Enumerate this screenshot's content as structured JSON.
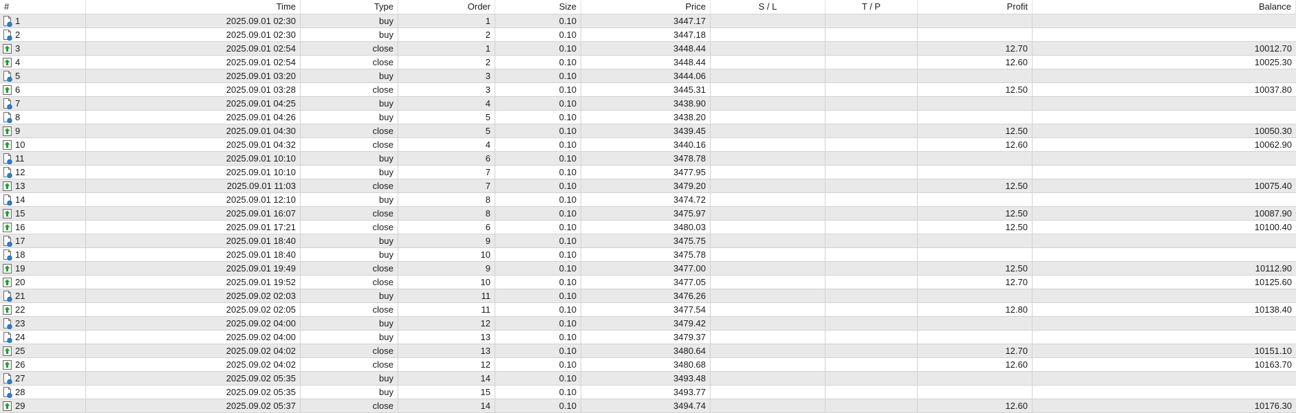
{
  "columns": [
    "#",
    "Time",
    "Type",
    "Order",
    "Size",
    "Price",
    "S / L",
    "T / P",
    "Profit",
    "Balance"
  ],
  "icons": {
    "buy": "pending-document-icon",
    "close": "green-up-arrow-icon"
  },
  "colors": {
    "row_alt": "#e9e9e9",
    "grid_line": "#d2d2d2",
    "arrow_green": "#1e9e2e",
    "dot_blue": "#2a7fd4"
  },
  "rows": [
    {
      "n": "1",
      "time": "2025.09.01 02:30",
      "type": "buy",
      "order": "1",
      "size": "0.10",
      "price": "3447.17",
      "sl": "",
      "tp": "",
      "profit": "",
      "balance": ""
    },
    {
      "n": "2",
      "time": "2025.09.01 02:30",
      "type": "buy",
      "order": "2",
      "size": "0.10",
      "price": "3447.18",
      "sl": "",
      "tp": "",
      "profit": "",
      "balance": ""
    },
    {
      "n": "3",
      "time": "2025.09.01 02:54",
      "type": "close",
      "order": "1",
      "size": "0.10",
      "price": "3448.44",
      "sl": "",
      "tp": "",
      "profit": "12.70",
      "balance": "10012.70"
    },
    {
      "n": "4",
      "time": "2025.09.01 02:54",
      "type": "close",
      "order": "2",
      "size": "0.10",
      "price": "3448.44",
      "sl": "",
      "tp": "",
      "profit": "12.60",
      "balance": "10025.30"
    },
    {
      "n": "5",
      "time": "2025.09.01 03:20",
      "type": "buy",
      "order": "3",
      "size": "0.10",
      "price": "3444.06",
      "sl": "",
      "tp": "",
      "profit": "",
      "balance": ""
    },
    {
      "n": "6",
      "time": "2025.09.01 03:28",
      "type": "close",
      "order": "3",
      "size": "0.10",
      "price": "3445.31",
      "sl": "",
      "tp": "",
      "profit": "12.50",
      "balance": "10037.80"
    },
    {
      "n": "7",
      "time": "2025.09.01 04:25",
      "type": "buy",
      "order": "4",
      "size": "0.10",
      "price": "3438.90",
      "sl": "",
      "tp": "",
      "profit": "",
      "balance": ""
    },
    {
      "n": "8",
      "time": "2025.09.01 04:26",
      "type": "buy",
      "order": "5",
      "size": "0.10",
      "price": "3438.20",
      "sl": "",
      "tp": "",
      "profit": "",
      "balance": ""
    },
    {
      "n": "9",
      "time": "2025.09.01 04:30",
      "type": "close",
      "order": "5",
      "size": "0.10",
      "price": "3439.45",
      "sl": "",
      "tp": "",
      "profit": "12.50",
      "balance": "10050.30"
    },
    {
      "n": "10",
      "time": "2025.09.01 04:32",
      "type": "close",
      "order": "4",
      "size": "0.10",
      "price": "3440.16",
      "sl": "",
      "tp": "",
      "profit": "12.60",
      "balance": "10062.90"
    },
    {
      "n": "11",
      "time": "2025.09.01 10:10",
      "type": "buy",
      "order": "6",
      "size": "0.10",
      "price": "3478.78",
      "sl": "",
      "tp": "",
      "profit": "",
      "balance": ""
    },
    {
      "n": "12",
      "time": "2025.09.01 10:10",
      "type": "buy",
      "order": "7",
      "size": "0.10",
      "price": "3477.95",
      "sl": "",
      "tp": "",
      "profit": "",
      "balance": ""
    },
    {
      "n": "13",
      "time": "2025.09.01 11:03",
      "type": "close",
      "order": "7",
      "size": "0.10",
      "price": "3479.20",
      "sl": "",
      "tp": "",
      "profit": "12.50",
      "balance": "10075.40"
    },
    {
      "n": "14",
      "time": "2025.09.01 12:10",
      "type": "buy",
      "order": "8",
      "size": "0.10",
      "price": "3474.72",
      "sl": "",
      "tp": "",
      "profit": "",
      "balance": ""
    },
    {
      "n": "15",
      "time": "2025.09.01 16:07",
      "type": "close",
      "order": "8",
      "size": "0.10",
      "price": "3475.97",
      "sl": "",
      "tp": "",
      "profit": "12.50",
      "balance": "10087.90"
    },
    {
      "n": "16",
      "time": "2025.09.01 17:21",
      "type": "close",
      "order": "6",
      "size": "0.10",
      "price": "3480.03",
      "sl": "",
      "tp": "",
      "profit": "12.50",
      "balance": "10100.40"
    },
    {
      "n": "17",
      "time": "2025.09.01 18:40",
      "type": "buy",
      "order": "9",
      "size": "0.10",
      "price": "3475.75",
      "sl": "",
      "tp": "",
      "profit": "",
      "balance": ""
    },
    {
      "n": "18",
      "time": "2025.09.01 18:40",
      "type": "buy",
      "order": "10",
      "size": "0.10",
      "price": "3475.78",
      "sl": "",
      "tp": "",
      "profit": "",
      "balance": ""
    },
    {
      "n": "19",
      "time": "2025.09.01 19:49",
      "type": "close",
      "order": "9",
      "size": "0.10",
      "price": "3477.00",
      "sl": "",
      "tp": "",
      "profit": "12.50",
      "balance": "10112.90"
    },
    {
      "n": "20",
      "time": "2025.09.01 19:52",
      "type": "close",
      "order": "10",
      "size": "0.10",
      "price": "3477.05",
      "sl": "",
      "tp": "",
      "profit": "12.70",
      "balance": "10125.60"
    },
    {
      "n": "21",
      "time": "2025.09.02 02:03",
      "type": "buy",
      "order": "11",
      "size": "0.10",
      "price": "3476.26",
      "sl": "",
      "tp": "",
      "profit": "",
      "balance": ""
    },
    {
      "n": "22",
      "time": "2025.09.02 02:05",
      "type": "close",
      "order": "11",
      "size": "0.10",
      "price": "3477.54",
      "sl": "",
      "tp": "",
      "profit": "12.80",
      "balance": "10138.40"
    },
    {
      "n": "23",
      "time": "2025.09.02 04:00",
      "type": "buy",
      "order": "12",
      "size": "0.10",
      "price": "3479.42",
      "sl": "",
      "tp": "",
      "profit": "",
      "balance": ""
    },
    {
      "n": "24",
      "time": "2025.09.02 04:00",
      "type": "buy",
      "order": "13",
      "size": "0.10",
      "price": "3479.37",
      "sl": "",
      "tp": "",
      "profit": "",
      "balance": ""
    },
    {
      "n": "25",
      "time": "2025.09.02 04:02",
      "type": "close",
      "order": "13",
      "size": "0.10",
      "price": "3480.64",
      "sl": "",
      "tp": "",
      "profit": "12.70",
      "balance": "10151.10"
    },
    {
      "n": "26",
      "time": "2025.09.02 04:02",
      "type": "close",
      "order": "12",
      "size": "0.10",
      "price": "3480.68",
      "sl": "",
      "tp": "",
      "profit": "12.60",
      "balance": "10163.70"
    },
    {
      "n": "27",
      "time": "2025.09.02 05:35",
      "type": "buy",
      "order": "14",
      "size": "0.10",
      "price": "3493.48",
      "sl": "",
      "tp": "",
      "profit": "",
      "balance": ""
    },
    {
      "n": "28",
      "time": "2025.09.02 05:35",
      "type": "buy",
      "order": "15",
      "size": "0.10",
      "price": "3493.77",
      "sl": "",
      "tp": "",
      "profit": "",
      "balance": ""
    },
    {
      "n": "29",
      "time": "2025.09.02 05:37",
      "type": "close",
      "order": "14",
      "size": "0.10",
      "price": "3494.74",
      "sl": "",
      "tp": "",
      "profit": "12.60",
      "balance": "10176.30"
    }
  ]
}
